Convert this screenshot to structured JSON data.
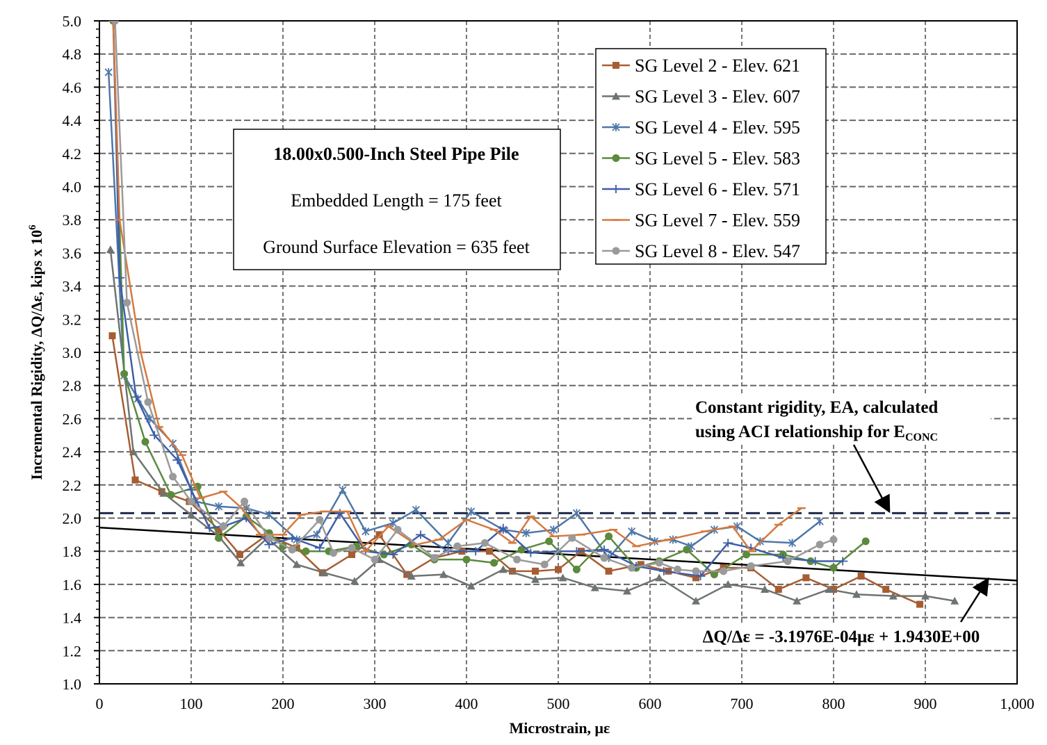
{
  "chart_data": {
    "type": "line",
    "xlabel": "Microstrain, με",
    "ylabel": "Incremental Rigidity, ΔQ/Δε, kips x 10",
    "ylabel_sup": "6",
    "xlim": [
      0,
      1000
    ],
    "ylim": [
      1.0,
      5.0
    ],
    "xticks": [
      "0",
      "100",
      "200",
      "300",
      "400",
      "500",
      "600",
      "700",
      "800",
      "900",
      "1,000"
    ],
    "yticks": [
      "1.0",
      "1.2",
      "1.4",
      "1.6",
      "1.8",
      "2.0",
      "2.2",
      "2.4",
      "2.6",
      "2.8",
      "3.0",
      "3.2",
      "3.4",
      "3.6",
      "3.8",
      "4.0",
      "4.2",
      "4.4",
      "4.6",
      "4.8",
      "5.0"
    ],
    "grid": true,
    "legend_position": "top-right",
    "series": [
      {
        "name": "SG Level 2 - Elev. 621",
        "color": "#A65D32",
        "marker": "square",
        "x": [
          14,
          39,
          68,
          98,
          130,
          153,
          183,
          215,
          243,
          275,
          305,
          335,
          365,
          395,
          425,
          450,
          475,
          500,
          525,
          555,
          590,
          620,
          650,
          680,
          710,
          740,
          770,
          800,
          830,
          857,
          894
        ],
        "y": [
          3.1,
          2.23,
          2.16,
          2.1,
          1.93,
          1.78,
          1.9,
          1.82,
          1.67,
          1.78,
          1.9,
          1.66,
          1.76,
          1.8,
          1.8,
          1.68,
          1.68,
          1.69,
          1.8,
          1.68,
          1.72,
          1.68,
          1.64,
          1.7,
          1.7,
          1.57,
          1.64,
          1.57,
          1.65,
          1.57,
          1.48
        ]
      },
      {
        "name": "SG Level 3 - Elev. 607",
        "color": "#6E7470",
        "marker": "triangle",
        "x": [
          12,
          37,
          70,
          100,
          130,
          154,
          183,
          215,
          245,
          278,
          305,
          340,
          375,
          405,
          440,
          475,
          505,
          540,
          575,
          610,
          650,
          685,
          725,
          760,
          795,
          825,
          865,
          900,
          932
        ],
        "y": [
          3.62,
          2.4,
          2.15,
          2.02,
          1.89,
          1.73,
          1.88,
          1.72,
          1.67,
          1.62,
          1.75,
          1.65,
          1.66,
          1.59,
          1.69,
          1.63,
          1.64,
          1.58,
          1.56,
          1.64,
          1.5,
          1.6,
          1.57,
          1.5,
          1.57,
          1.54,
          1.53,
          1.53,
          1.5
        ]
      },
      {
        "name": "SG Level 4 - Elev. 595",
        "color": "#4E77A8",
        "marker": "x",
        "x": [
          10,
          27,
          42,
          55,
          80,
          105,
          130,
          160,
          185,
          215,
          237,
          265,
          290,
          320,
          345,
          380,
          405,
          440,
          465,
          495,
          520,
          555,
          580,
          605,
          625,
          645,
          670,
          695,
          720,
          755,
          785
        ],
        "y": [
          4.69,
          2.86,
          2.72,
          2.6,
          2.45,
          2.1,
          2.07,
          2.06,
          2.02,
          1.87,
          1.9,
          2.17,
          1.92,
          1.97,
          2.05,
          1.85,
          2.04,
          1.93,
          1.91,
          1.93,
          2.03,
          1.76,
          1.92,
          1.86,
          1.87,
          1.83,
          1.93,
          1.95,
          1.86,
          1.85,
          1.98
        ]
      },
      {
        "name": "SG Level 5 - Elev. 583",
        "color": "#5B8A3C",
        "marker": "circle",
        "x": [
          15,
          27,
          50,
          78,
          107,
          130,
          160,
          185,
          200,
          225,
          250,
          280,
          310,
          340,
          365,
          400,
          430,
          460,
          490,
          520,
          555,
          585,
          610,
          640,
          670,
          705,
          745,
          775,
          800,
          835
        ],
        "y": [
          5.0,
          2.87,
          2.46,
          2.14,
          2.19,
          1.88,
          2.01,
          1.91,
          1.83,
          1.8,
          1.8,
          1.83,
          1.78,
          1.84,
          1.75,
          1.75,
          1.73,
          1.81,
          1.86,
          1.69,
          1.89,
          1.7,
          1.74,
          1.81,
          1.66,
          1.78,
          1.78,
          1.74,
          1.7,
          1.86
        ]
      },
      {
        "name": "SG Level 6 - Elev. 571",
        "color": "#3D5EA8",
        "marker": "plus",
        "x": [
          15,
          22,
          40,
          60,
          85,
          100,
          120,
          135,
          160,
          185,
          210,
          240,
          262,
          290,
          320,
          350,
          380,
          410,
          440,
          470,
          500,
          520,
          550,
          585,
          615,
          655,
          685,
          710,
          745,
          780,
          810
        ],
        "y": [
          5.0,
          3.45,
          2.73,
          2.5,
          2.35,
          2.17,
          1.94,
          1.95,
          2.0,
          1.84,
          1.88,
          1.82,
          2.03,
          1.8,
          1.78,
          1.9,
          1.8,
          1.8,
          1.94,
          1.79,
          1.8,
          1.8,
          1.81,
          1.71,
          1.68,
          1.65,
          1.85,
          1.82,
          1.76,
          1.74,
          1.74
        ]
      },
      {
        "name": "SG Level 7 - Elev. 559",
        "color": "#D6793E",
        "marker": "dash",
        "x": [
          15,
          22,
          45,
          65,
          90,
          110,
          135,
          155,
          175,
          200,
          220,
          245,
          270,
          290,
          315,
          345,
          370,
          400,
          430,
          450,
          470,
          495,
          525,
          560,
          585,
          620,
          660,
          690,
          710,
          740,
          765
        ],
        "y": [
          5.0,
          3.8,
          3.0,
          2.55,
          2.38,
          2.12,
          2.16,
          2.06,
          1.9,
          1.9,
          2.02,
          2.04,
          2.04,
          1.8,
          1.95,
          1.84,
          1.87,
          1.99,
          1.93,
          1.85,
          2.01,
          1.89,
          1.9,
          1.93,
          1.83,
          1.87,
          1.92,
          1.95,
          1.8,
          1.96,
          2.06
        ]
      },
      {
        "name": "SG Level 8 - Elev. 547",
        "color": "#9A9A9A",
        "marker": "circle",
        "x": [
          17,
          30,
          53,
          80,
          100,
          135,
          158,
          185,
          210,
          240,
          255,
          275,
          300,
          325,
          365,
          390,
          420,
          455,
          485,
          515,
          550,
          580,
          610,
          630,
          650,
          680,
          710,
          750,
          785,
          800
        ],
        "y": [
          5.0,
          3.3,
          2.7,
          2.25,
          2.1,
          1.95,
          2.1,
          1.88,
          1.81,
          1.99,
          1.79,
          1.82,
          1.75,
          1.93,
          1.76,
          1.83,
          1.85,
          1.75,
          1.72,
          1.88,
          1.76,
          1.7,
          1.73,
          1.69,
          1.68,
          1.68,
          1.71,
          1.74,
          1.84,
          1.87
        ]
      }
    ],
    "constant_line": {
      "y": 2.03,
      "color": "#1F2A4A",
      "style": "dashed"
    },
    "trendline": {
      "slope": -0.00031976,
      "intercept": 1.943,
      "color": "#000000"
    },
    "textbox": {
      "title": "18.00x0.500-Inch Steel Pipe Pile",
      "line1": "Embedded Length = 175 feet",
      "line2": "Ground Surface Elevation = 635 feet"
    },
    "annotation_constant": {
      "line1": "Constant rigidity, EA, calculated",
      "line2": "using ACI relationship for E",
      "line2_sub": "CONC"
    },
    "annotation_equation": "ΔQ/Δε = -3.1976E-04με + 1.9430E+00"
  }
}
